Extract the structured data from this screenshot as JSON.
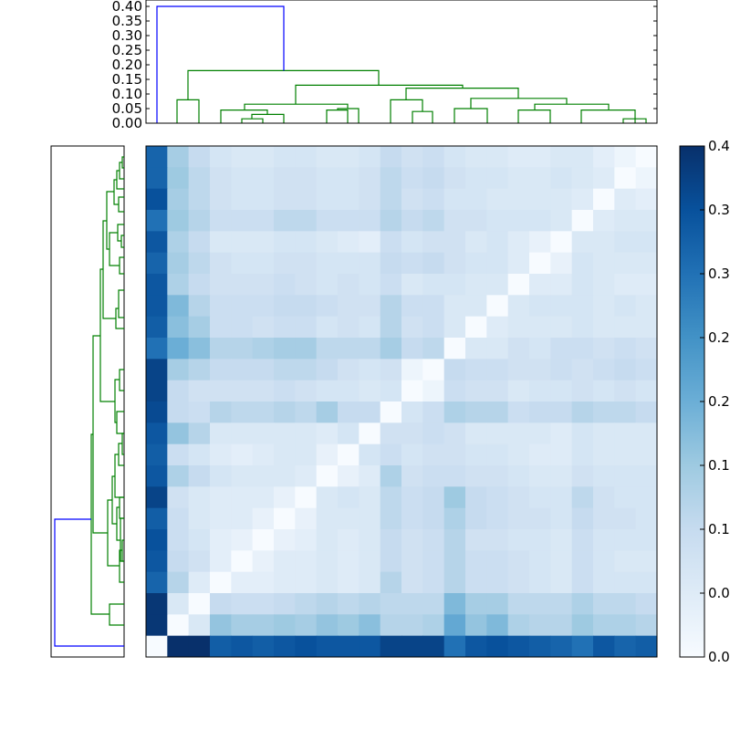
{
  "chart_data": {
    "type": "heatmap",
    "title": "",
    "colormap": "Blues",
    "vmin": 0.0,
    "vmax": 0.4,
    "n": 24,
    "colorbar": {
      "ticks": [
        0.0,
        0.05,
        0.1,
        0.15,
        0.2,
        0.25,
        0.3,
        0.35,
        0.4
      ],
      "tick_labels": [
        "0.00",
        "0.05",
        "0.10",
        "0.15",
        "0.20",
        "0.25",
        "0.30",
        "0.35",
        "0.40"
      ]
    },
    "top_dendrogram": {
      "ylim": [
        0,
        0.4
      ],
      "ticks": [
        0.0,
        0.05,
        0.1,
        0.15,
        0.2,
        0.25,
        0.3,
        0.35,
        0.4
      ],
      "tick_labels": [
        "0.00",
        "0.05",
        "0.10",
        "0.15",
        "0.20",
        "0.25",
        "0.30",
        "0.35",
        "0.40"
      ],
      "colors": {
        "root": "#0000ff",
        "cluster": "#008000"
      }
    },
    "left_dendrogram": {
      "colors": {
        "root": "#0000ff",
        "cluster": "#008000"
      }
    },
    "matrix": [
      [
        0.32,
        0.14,
        0.1,
        0.07,
        0.06,
        0.06,
        0.07,
        0.07,
        0.06,
        0.06,
        0.07,
        0.1,
        0.08,
        0.09,
        0.07,
        0.06,
        0.06,
        0.05,
        0.05,
        0.06,
        0.06,
        0.04,
        0.02,
        0.0
      ],
      [
        0.32,
        0.15,
        0.11,
        0.08,
        0.07,
        0.07,
        0.08,
        0.08,
        0.07,
        0.07,
        0.08,
        0.11,
        0.09,
        0.1,
        0.08,
        0.07,
        0.07,
        0.06,
        0.06,
        0.07,
        0.06,
        0.05,
        0.0,
        0.02
      ],
      [
        0.35,
        0.14,
        0.11,
        0.08,
        0.07,
        0.07,
        0.08,
        0.08,
        0.07,
        0.07,
        0.08,
        0.11,
        0.08,
        0.09,
        0.07,
        0.07,
        0.06,
        0.06,
        0.06,
        0.06,
        0.05,
        0.0,
        0.05,
        0.04
      ],
      [
        0.3,
        0.15,
        0.12,
        0.09,
        0.09,
        0.09,
        0.11,
        0.11,
        0.09,
        0.09,
        0.09,
        0.12,
        0.1,
        0.11,
        0.08,
        0.08,
        0.07,
        0.07,
        0.07,
        0.06,
        0.0,
        0.05,
        0.06,
        0.06
      ],
      [
        0.34,
        0.13,
        0.1,
        0.06,
        0.06,
        0.06,
        0.07,
        0.07,
        0.06,
        0.05,
        0.04,
        0.09,
        0.07,
        0.08,
        0.08,
        0.06,
        0.07,
        0.05,
        0.03,
        0.0,
        0.06,
        0.06,
        0.07,
        0.07
      ],
      [
        0.32,
        0.14,
        0.11,
        0.08,
        0.07,
        0.07,
        0.08,
        0.08,
        0.07,
        0.07,
        0.07,
        0.1,
        0.09,
        0.1,
        0.08,
        0.07,
        0.07,
        0.05,
        0.0,
        0.03,
        0.07,
        0.06,
        0.06,
        0.06
      ],
      [
        0.34,
        0.13,
        0.1,
        0.08,
        0.08,
        0.08,
        0.09,
        0.08,
        0.07,
        0.08,
        0.07,
        0.09,
        0.06,
        0.07,
        0.07,
        0.06,
        0.06,
        0.0,
        0.05,
        0.05,
        0.07,
        0.06,
        0.05,
        0.05
      ],
      [
        0.34,
        0.18,
        0.12,
        0.09,
        0.09,
        0.09,
        0.1,
        0.1,
        0.09,
        0.08,
        0.08,
        0.12,
        0.09,
        0.09,
        0.06,
        0.06,
        0.0,
        0.06,
        0.07,
        0.07,
        0.07,
        0.06,
        0.07,
        0.06
      ],
      [
        0.33,
        0.17,
        0.14,
        0.09,
        0.09,
        0.08,
        0.09,
        0.09,
        0.07,
        0.08,
        0.07,
        0.12,
        0.08,
        0.09,
        0.06,
        0.0,
        0.05,
        0.06,
        0.06,
        0.06,
        0.07,
        0.06,
        0.06,
        0.06
      ],
      [
        0.3,
        0.2,
        0.17,
        0.12,
        0.12,
        0.13,
        0.14,
        0.14,
        0.11,
        0.11,
        0.11,
        0.14,
        0.1,
        0.11,
        0.0,
        0.06,
        0.06,
        0.08,
        0.07,
        0.09,
        0.09,
        0.08,
        0.09,
        0.08
      ],
      [
        0.37,
        0.14,
        0.12,
        0.1,
        0.1,
        0.1,
        0.11,
        0.11,
        0.1,
        0.08,
        0.07,
        0.08,
        0.02,
        0.0,
        0.1,
        0.09,
        0.09,
        0.08,
        0.08,
        0.09,
        0.08,
        0.09,
        0.1,
        0.09
      ],
      [
        0.37,
        0.1,
        0.08,
        0.08,
        0.08,
        0.08,
        0.09,
        0.08,
        0.07,
        0.07,
        0.06,
        0.07,
        0.0,
        0.02,
        0.09,
        0.08,
        0.08,
        0.06,
        0.07,
        0.07,
        0.08,
        0.07,
        0.08,
        0.07
      ],
      [
        0.36,
        0.1,
        0.09,
        0.12,
        0.11,
        0.11,
        0.12,
        0.11,
        0.14,
        0.1,
        0.1,
        0.0,
        0.07,
        0.09,
        0.13,
        0.12,
        0.12,
        0.09,
        0.1,
        0.1,
        0.12,
        0.11,
        0.11,
        0.1
      ],
      [
        0.34,
        0.16,
        0.12,
        0.06,
        0.06,
        0.06,
        0.06,
        0.06,
        0.05,
        0.07,
        0.0,
        0.08,
        0.08,
        0.09,
        0.08,
        0.06,
        0.06,
        0.06,
        0.06,
        0.05,
        0.07,
        0.06,
        0.06,
        0.06
      ],
      [
        0.33,
        0.09,
        0.07,
        0.05,
        0.04,
        0.05,
        0.06,
        0.06,
        0.03,
        0.0,
        0.07,
        0.09,
        0.07,
        0.08,
        0.08,
        0.07,
        0.07,
        0.06,
        0.05,
        0.05,
        0.07,
        0.06,
        0.06,
        0.06
      ],
      [
        0.34,
        0.13,
        0.1,
        0.07,
        0.06,
        0.06,
        0.06,
        0.05,
        0.0,
        0.03,
        0.05,
        0.13,
        0.08,
        0.09,
        0.09,
        0.08,
        0.08,
        0.07,
        0.06,
        0.06,
        0.08,
        0.07,
        0.07,
        0.07
      ],
      [
        0.37,
        0.08,
        0.06,
        0.05,
        0.05,
        0.05,
        0.03,
        0.0,
        0.06,
        0.07,
        0.06,
        0.11,
        0.09,
        0.1,
        0.15,
        0.1,
        0.09,
        0.08,
        0.07,
        0.07,
        0.11,
        0.08,
        0.07,
        0.07
      ],
      [
        0.33,
        0.09,
        0.06,
        0.05,
        0.05,
        0.03,
        0.0,
        0.03,
        0.06,
        0.06,
        0.06,
        0.11,
        0.09,
        0.1,
        0.13,
        0.1,
        0.09,
        0.08,
        0.08,
        0.07,
        0.1,
        0.08,
        0.08,
        0.07
      ],
      [
        0.35,
        0.09,
        0.07,
        0.04,
        0.03,
        0.0,
        0.03,
        0.04,
        0.06,
        0.05,
        0.06,
        0.1,
        0.08,
        0.09,
        0.12,
        0.08,
        0.08,
        0.07,
        0.07,
        0.06,
        0.09,
        0.07,
        0.07,
        0.07
      ],
      [
        0.34,
        0.1,
        0.08,
        0.04,
        0.0,
        0.03,
        0.05,
        0.05,
        0.06,
        0.05,
        0.06,
        0.1,
        0.08,
        0.09,
        0.12,
        0.09,
        0.09,
        0.08,
        0.07,
        0.06,
        0.09,
        0.07,
        0.06,
        0.06
      ],
      [
        0.32,
        0.12,
        0.05,
        0.0,
        0.04,
        0.04,
        0.05,
        0.05,
        0.06,
        0.05,
        0.06,
        0.12,
        0.08,
        0.09,
        0.12,
        0.09,
        0.09,
        0.08,
        0.07,
        0.06,
        0.09,
        0.07,
        0.07,
        0.07
      ],
      [
        0.39,
        0.06,
        0.0,
        0.1,
        0.09,
        0.09,
        0.1,
        0.11,
        0.12,
        0.11,
        0.12,
        0.11,
        0.11,
        0.11,
        0.18,
        0.14,
        0.14,
        0.11,
        0.11,
        0.11,
        0.13,
        0.11,
        0.11,
        0.1
      ],
      [
        0.39,
        0.0,
        0.06,
        0.16,
        0.14,
        0.14,
        0.15,
        0.14,
        0.16,
        0.15,
        0.17,
        0.12,
        0.12,
        0.13,
        0.21,
        0.16,
        0.18,
        0.13,
        0.12,
        0.12,
        0.15,
        0.13,
        0.13,
        0.12
      ],
      [
        0.0,
        0.4,
        0.4,
        0.33,
        0.34,
        0.33,
        0.34,
        0.35,
        0.34,
        0.34,
        0.34,
        0.37,
        0.37,
        0.37,
        0.3,
        0.34,
        0.35,
        0.34,
        0.33,
        0.32,
        0.3,
        0.34,
        0.32,
        0.33
      ]
    ]
  }
}
